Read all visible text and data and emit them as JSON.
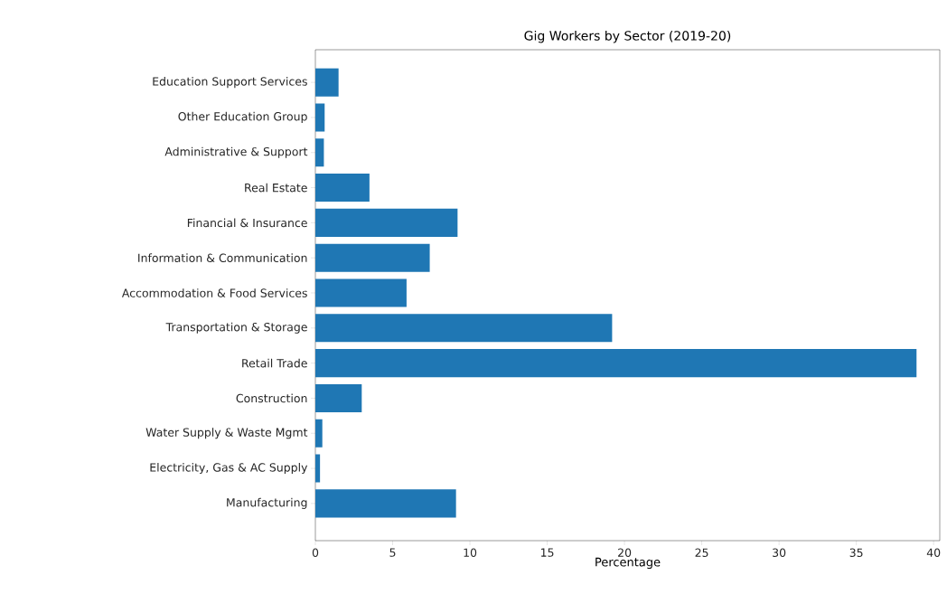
{
  "chart_data": {
    "type": "bar",
    "orientation": "horizontal",
    "title": "Gig Workers by Sector (2019-20)",
    "xlabel": "Percentage",
    "categories": [
      "Education Support Services",
      "Other Education Group",
      "Administrative & Support",
      "Real Estate",
      "Financial & Insurance",
      "Information & Communication",
      "Accommodation & Food Services",
      "Transportation & Storage",
      "Retail Trade",
      "Construction",
      "Water Supply & Waste Mgmt",
      "Electricity, Gas & AC Supply",
      "Manufacturing"
    ],
    "values": [
      1.5,
      0.6,
      0.55,
      3.5,
      9.2,
      7.4,
      5.9,
      19.2,
      38.9,
      3.0,
      0.45,
      0.3,
      9.1
    ],
    "color": "#1f77b4",
    "xlim": [
      0,
      40.4
    ],
    "xticks": [
      0,
      5,
      10,
      15,
      20,
      25,
      30,
      35,
      40
    ],
    "grid": false
  }
}
